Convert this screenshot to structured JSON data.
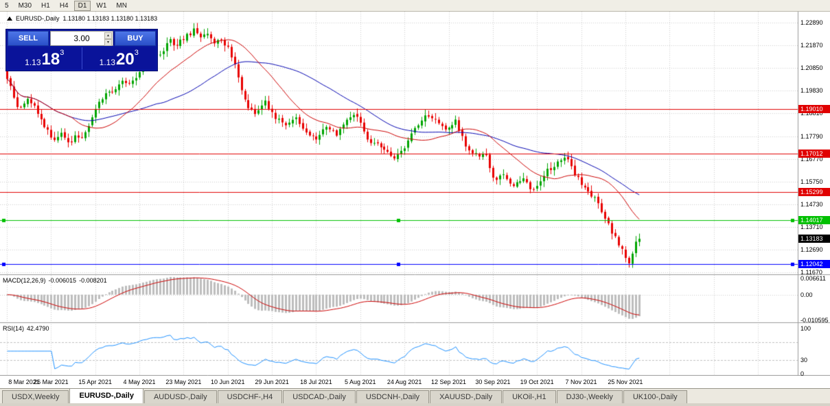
{
  "toolbar": {
    "timeframes": [
      {
        "label": "5",
        "active": false
      },
      {
        "label": "M30",
        "active": false
      },
      {
        "label": "H1",
        "active": false
      },
      {
        "label": "H4",
        "active": false
      },
      {
        "label": "D1",
        "active": true
      },
      {
        "label": "W1",
        "active": false
      },
      {
        "label": "MN",
        "active": false
      }
    ]
  },
  "chart": {
    "title": "EURUSD-,Daily",
    "ohlc": "1.13180 1.13183 1.13180 1.13183"
  },
  "trade_panel": {
    "sell_label": "SELL",
    "buy_label": "BUY",
    "lot": "3.00",
    "sell_price": {
      "prefix": "1.13",
      "big": "18",
      "sup": "3"
    },
    "buy_price": {
      "prefix": "1.13",
      "big": "20",
      "sup": "3"
    }
  },
  "price_axis": {
    "ticks": [
      "1.22890",
      "1.21870",
      "1.20850",
      "1.19830",
      "1.18810",
      "1.17790",
      "1.16770",
      "1.15750",
      "1.14730",
      "1.13710",
      "1.12690",
      "1.11670"
    ]
  },
  "hlines": [
    {
      "value": "1.19010",
      "color": "#e00000"
    },
    {
      "value": "1.17012",
      "color": "#e00000"
    },
    {
      "value": "1.15299",
      "color": "#e00000"
    },
    {
      "value": "1.14017",
      "color": "#00c000"
    },
    {
      "value": "1.12042",
      "color": "#0000ff"
    }
  ],
  "current_price": {
    "value": "1.13183",
    "color": "#000000"
  },
  "macd": {
    "label": "MACD(12,26,9)",
    "value1": "-0.006015",
    "value2": "-0.008201",
    "axis": [
      "0.006611",
      "0.00",
      "-0.010595"
    ]
  },
  "rsi": {
    "label": "RSI(14)",
    "value": "42.4790",
    "axis": [
      "100",
      "30",
      "0"
    ]
  },
  "time_axis": [
    "8 Mar 2021",
    "26 Mar 2021",
    "15 Apr 2021",
    "4 May 2021",
    "23 May 2021",
    "10 Jun 2021",
    "29 Jun 2021",
    "18 Jul 2021",
    "5 Aug 2021",
    "24 Aug 2021",
    "12 Sep 2021",
    "30 Sep 2021",
    "19 Oct 2021",
    "7 Nov 2021",
    "25 Nov 2021"
  ],
  "tabs": [
    {
      "label": "USDX,Weekly",
      "active": false
    },
    {
      "label": "EURUSD-,Daily",
      "active": true
    },
    {
      "label": "AUDUSD-,Daily",
      "active": false
    },
    {
      "label": "USDCHF-,H4",
      "active": false
    },
    {
      "label": "USDCAD-,Daily",
      "active": false
    },
    {
      "label": "USDCNH-,Daily",
      "active": false
    },
    {
      "label": "XAUUSD-,Daily",
      "active": false
    },
    {
      "label": "UKOil-,H1",
      "active": false
    },
    {
      "label": "DJ30-,Weekly",
      "active": false
    },
    {
      "label": "UK100-,Daily",
      "active": false
    }
  ],
  "chart_data": {
    "type": "candlestick",
    "symbol": "EURUSD-",
    "timeframe": "Daily",
    "bars": 187,
    "bars_per_label": 13,
    "last_close": 1.13183,
    "ylim": [
      1.1159,
      1.2338
    ],
    "price_keypoints": [
      [
        0,
        1.2045
      ],
      [
        1,
        1.201
      ],
      [
        2,
        1.1955
      ],
      [
        3,
        1.192
      ],
      [
        4,
        1.19
      ],
      [
        6,
        1.1952
      ],
      [
        8,
        1.1915
      ],
      [
        10,
        1.186
      ],
      [
        12,
        1.18
      ],
      [
        14,
        1.1762
      ],
      [
        16,
        1.1788
      ],
      [
        18,
        1.1742
      ],
      [
        20,
        1.1772
      ],
      [
        23,
        1.179
      ],
      [
        26,
        1.1905
      ],
      [
        29,
        1.1968
      ],
      [
        32,
        1.1988
      ],
      [
        34,
        1.2032
      ],
      [
        36,
        1.2012
      ],
      [
        39,
        1.2058
      ],
      [
        42,
        1.2128
      ],
      [
        45,
        1.2152
      ],
      [
        48,
        1.2208
      ],
      [
        50,
        1.2188
      ],
      [
        52,
        1.2222
      ],
      [
        55,
        1.2252
      ],
      [
        57,
        1.2218
      ],
      [
        59,
        1.2248
      ],
      [
        61,
        1.2192
      ],
      [
        63,
        1.2218
      ],
      [
        65,
        1.2172
      ],
      [
        67,
        1.2108
      ],
      [
        69,
        1.1992
      ],
      [
        71,
        1.1908
      ],
      [
        73,
        1.1868
      ],
      [
        76,
        1.1932
      ],
      [
        79,
        1.1862
      ],
      [
        82,
        1.1828
      ],
      [
        85,
        1.1858
      ],
      [
        88,
        1.1798
      ],
      [
        91,
        1.1772
      ],
      [
        94,
        1.1818
      ],
      [
        97,
        1.1792
      ],
      [
        100,
        1.1852
      ],
      [
        103,
        1.1872
      ],
      [
        106,
        1.1762
      ],
      [
        109,
        1.1738
      ],
      [
        112,
        1.1702
      ],
      [
        114,
        1.1668
      ],
      [
        117,
        1.1732
      ],
      [
        120,
        1.1808
      ],
      [
        123,
        1.1882
      ],
      [
        126,
        1.1858
      ],
      [
        129,
        1.1812
      ],
      [
        132,
        1.1848
      ],
      [
        135,
        1.1732
      ],
      [
        138,
        1.1692
      ],
      [
        141,
        1.1698
      ],
      [
        143,
        1.1582
      ],
      [
        146,
        1.1602
      ],
      [
        149,
        1.1562
      ],
      [
        152,
        1.1592
      ],
      [
        154,
        1.1532
      ],
      [
        156,
        1.1562
      ],
      [
        159,
        1.1622
      ],
      [
        162,
        1.1662
      ],
      [
        164,
        1.1688
      ],
      [
        166,
        1.1642
      ],
      [
        168,
        1.1585
      ],
      [
        170,
        1.1552
      ],
      [
        172,
        1.1518
      ],
      [
        174,
        1.1472
      ],
      [
        176,
        1.1418
      ],
      [
        178,
        1.1352
      ],
      [
        180,
        1.1295
      ],
      [
        182,
        1.1242
      ],
      [
        183,
        1.1212
      ],
      [
        184,
        1.1252
      ],
      [
        185,
        1.1302
      ],
      [
        186,
        1.13183
      ]
    ],
    "horizontal_levels": [
      {
        "value": 1.1901,
        "color": "#e00000",
        "handles": false
      },
      {
        "value": 1.17012,
        "color": "#e00000",
        "handles": false
      },
      {
        "value": 1.15299,
        "color": "#e00000",
        "handles": false
      },
      {
        "value": 1.14017,
        "color": "#00c000",
        "handles": true
      },
      {
        "value": 1.12042,
        "color": "#0000ff",
        "handles": true
      }
    ],
    "ma_fast": {
      "period": 20,
      "color": "#cc0000"
    },
    "ma_slow": {
      "period": 45,
      "color": "#0000b0"
    },
    "macd": {
      "fast": 12,
      "slow": 26,
      "signal": 9,
      "ylim": [
        0.0081,
        -0.0114
      ],
      "hist_color": "#bdbdbd",
      "signal_color": "#cc0000"
    },
    "rsi": {
      "period": 14,
      "levels": [
        70,
        30
      ],
      "color": "#1e90ff",
      "range": [
        0,
        100
      ]
    },
    "bull_color": "#00a400",
    "bear_color": "#e80000",
    "grid_color": "#cdcdcd"
  }
}
